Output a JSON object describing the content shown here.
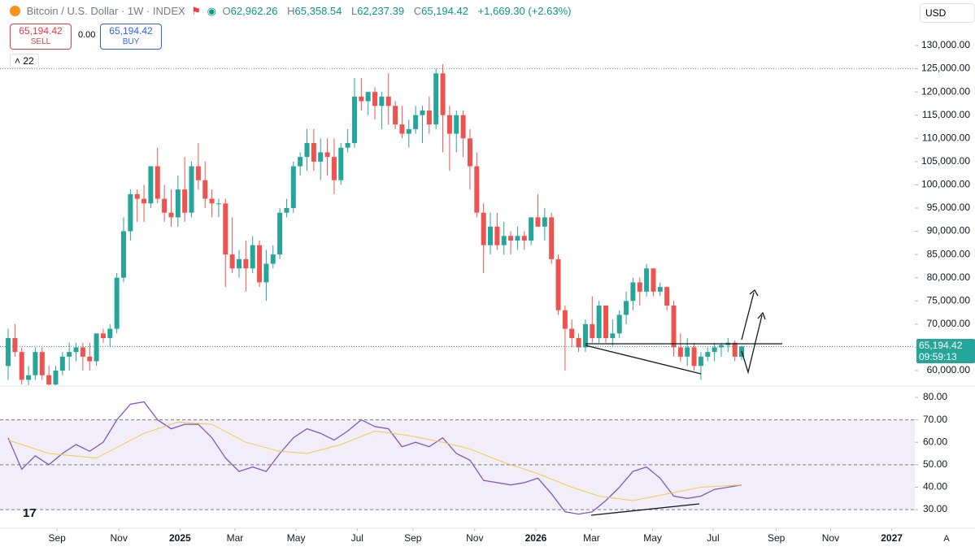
{
  "header": {
    "symbol": "Bitcoin / U.S. Dollar · 1W · INDEX",
    "ohlc_text": [
      [
        "O",
        "62,962.26"
      ],
      [
        "H",
        "65,358.54"
      ],
      [
        "L",
        "62,237.39"
      ],
      [
        "C",
        "65,194.42"
      ]
    ],
    "change": "+1,669.30 (+2.63%)",
    "sell_price": "65,194.42",
    "sell": "SELL",
    "spread": "0.00",
    "buy_price": "65,194.42",
    "buy": "BUY",
    "indicators": "22",
    "currency": "USD",
    "price_tag": "65,194.42",
    "countdown": "09:59:13",
    "auto": "A"
  },
  "chart_data": [
    {
      "type": "candlestick",
      "up_color": "#26a69a",
      "down_color": "#ef5350",
      "ylim": [
        56850,
        139800
      ],
      "xlim": [
        -1.2,
        133.5
      ],
      "yticks": [
        {
          "value": 60000,
          "label": "60,000.00"
        },
        {
          "value": 65000,
          "label": "65,000.00"
        },
        {
          "value": 70000,
          "label": "70,000.00"
        },
        {
          "value": 75000,
          "label": "75,000.00"
        },
        {
          "value": 80000,
          "label": "80,000.00"
        },
        {
          "value": 85000,
          "label": "85,000.00"
        },
        {
          "value": 90000,
          "label": "90,000.00"
        },
        {
          "value": 95000,
          "label": "95,000.00"
        },
        {
          "value": 100000,
          "label": "100,000.00"
        },
        {
          "value": 105000,
          "label": "105,000.00"
        },
        {
          "value": 110000,
          "label": "110,000.00"
        },
        {
          "value": 115000,
          "label": "115,000.00"
        },
        {
          "value": 120000,
          "label": "120,000.00"
        },
        {
          "value": 125000,
          "label": "125,000.00"
        },
        {
          "value": 130000,
          "label": "130,000.00"
        }
      ],
      "ohlc": [
        [
          61000,
          69000,
          58000,
          67000
        ],
        [
          67000,
          70000,
          63000,
          64000
        ],
        [
          64000,
          65000,
          57000,
          58000
        ],
        [
          58000,
          61000,
          55000,
          59000
        ],
        [
          59000,
          65000,
          58000,
          64000
        ],
        [
          64000,
          65000,
          58000,
          59000
        ],
        [
          59000,
          61000,
          55000,
          57000
        ],
        [
          57000,
          61000,
          56000,
          60000
        ],
        [
          60000,
          64000,
          59000,
          63000
        ],
        [
          63000,
          66000,
          60000,
          64000
        ],
        [
          64000,
          66000,
          62000,
          65000
        ],
        [
          65000,
          66000,
          60000,
          63000
        ],
        [
          63000,
          66000,
          60000,
          62000
        ],
        [
          62000,
          68000,
          61000,
          68000
        ],
        [
          68000,
          69000,
          66000,
          67000
        ],
        [
          67000,
          70000,
          65000,
          69000
        ],
        [
          69000,
          81000,
          68000,
          80000
        ],
        [
          80000,
          93000,
          79000,
          90000
        ],
        [
          90000,
          99000,
          88000,
          98000
        ],
        [
          98000,
          99000,
          92000,
          97000
        ],
        [
          97000,
          100000,
          92000,
          96000
        ],
        [
          96000,
          104000,
          95000,
          104000
        ],
        [
          104000,
          108000,
          96000,
          97000
        ],
        [
          97000,
          100000,
          92000,
          94000
        ],
        [
          94000,
          99000,
          91000,
          93000
        ],
        [
          93000,
          102000,
          91000,
          99000
        ],
        [
          99000,
          106000,
          92000,
          94000
        ],
        [
          94000,
          105000,
          93000,
          104000
        ],
        [
          104000,
          109000,
          99000,
          101000
        ],
        [
          101000,
          105000,
          95000,
          97000
        ],
        [
          97000,
          99000,
          93000,
          96000
        ],
        [
          96000,
          97000,
          93000,
          96000
        ],
        [
          96000,
          97000,
          78000,
          85000
        ],
        [
          85000,
          93000,
          81000,
          82000
        ],
        [
          82000,
          86000,
          80000,
          84000
        ],
        [
          84000,
          88000,
          77000,
          82000
        ],
        [
          82000,
          89000,
          81000,
          87000
        ],
        [
          87000,
          88000,
          78000,
          79000
        ],
        [
          79000,
          86000,
          75000,
          83000
        ],
        [
          83000,
          87000,
          82000,
          85000
        ],
        [
          85000,
          95000,
          84000,
          94000
        ],
        [
          94000,
          97000,
          93000,
          95000
        ],
        [
          95000,
          105000,
          94000,
          104000
        ],
        [
          104000,
          107000,
          102000,
          106000
        ],
        [
          106000,
          112000,
          103000,
          109000
        ],
        [
          109000,
          112000,
          103000,
          105000
        ],
        [
          105000,
          110000,
          101000,
          107000
        ],
        [
          107000,
          110000,
          102000,
          106000
        ],
        [
          106000,
          110000,
          98000,
          101000
        ],
        [
          101000,
          109000,
          100000,
          108000
        ],
        [
          108000,
          112000,
          107000,
          109000
        ],
        [
          109000,
          123000,
          108000,
          119000
        ],
        [
          119000,
          123000,
          116000,
          118000
        ],
        [
          118000,
          120000,
          115000,
          120000
        ],
        [
          120000,
          121000,
          114000,
          117000
        ],
        [
          117000,
          120000,
          112000,
          119000
        ],
        [
          119000,
          124000,
          113000,
          117000
        ],
        [
          117000,
          118000,
          112000,
          113000
        ],
        [
          113000,
          117000,
          110000,
          111000
        ],
        [
          111000,
          114000,
          108000,
          112000
        ],
        [
          112000,
          117000,
          111000,
          115000
        ],
        [
          115000,
          117000,
          109000,
          116000
        ],
        [
          116000,
          119000,
          111000,
          113000
        ],
        [
          113000,
          125000,
          112000,
          124000
        ],
        [
          124000,
          126000,
          107000,
          115000
        ],
        [
          115000,
          117000,
          103000,
          111000
        ],
        [
          111000,
          116000,
          107000,
          115000
        ],
        [
          115000,
          116000,
          106000,
          110000
        ],
        [
          110000,
          112000,
          99000,
          104000
        ],
        [
          104000,
          107000,
          93000,
          94000
        ],
        [
          94000,
          96000,
          81000,
          87000
        ],
        [
          87000,
          94000,
          85000,
          91000
        ],
        [
          91000,
          94000,
          86000,
          87000
        ],
        [
          87000,
          92000,
          85000,
          89000
        ],
        [
          89000,
          90000,
          85000,
          88000
        ],
        [
          88000,
          91000,
          86000,
          89000
        ],
        [
          89000,
          90000,
          86000,
          88000
        ],
        [
          88000,
          93000,
          87000,
          93000
        ],
        [
          93000,
          98000,
          91000,
          91000
        ],
        [
          91000,
          95000,
          88000,
          93000
        ],
        [
          93000,
          94000,
          83000,
          84000
        ],
        [
          84000,
          85000,
          72000,
          73000
        ],
        [
          73000,
          74000,
          60000,
          69000
        ],
        [
          69000,
          71000,
          65000,
          67000
        ],
        [
          67000,
          68000,
          64000,
          65000
        ],
        [
          65000,
          71000,
          64000,
          70000
        ],
        [
          70000,
          76000,
          66000,
          67000
        ],
        [
          67000,
          75000,
          66000,
          74000
        ],
        [
          74000,
          74000,
          66000,
          67000
        ],
        [
          67000,
          71000,
          65000,
          68000
        ],
        [
          68000,
          73000,
          67000,
          72000
        ],
        [
          72000,
          77000,
          70000,
          75000
        ],
        [
          75000,
          80000,
          73000,
          79000
        ],
        [
          79000,
          80000,
          74000,
          77000
        ],
        [
          77000,
          83000,
          76000,
          82000
        ],
        [
          82000,
          82000,
          76000,
          77000
        ],
        [
          77000,
          79000,
          76000,
          78000
        ],
        [
          78000,
          78000,
          73000,
          74000
        ],
        [
          74000,
          75000,
          63000,
          65000
        ],
        [
          65000,
          68000,
          62000,
          63000
        ],
        [
          63000,
          67000,
          61000,
          65000
        ],
        [
          65000,
          66000,
          60000,
          61000
        ],
        [
          61000,
          64000,
          58000,
          63000
        ],
        [
          63000,
          65000,
          62000,
          64000
        ],
        [
          64000,
          66000,
          62000,
          65000
        ],
        [
          65000,
          66000,
          63000,
          65500
        ],
        [
          65500,
          67000,
          64000,
          66000
        ],
        [
          66000,
          66500,
          62000,
          63000
        ],
        [
          62962.26,
          65358.54,
          62237.39,
          65194.42
        ]
      ]
    },
    {
      "type": "line",
      "ylim": [
        21.7,
        84.7
      ],
      "xlim": [
        -1.2,
        133.5
      ],
      "yticks": [
        {
          "value": 30,
          "label": "30.00"
        },
        {
          "value": 40,
          "label": "40.00"
        },
        {
          "value": 50,
          "label": "50.00"
        },
        {
          "value": 60,
          "label": "60.00"
        },
        {
          "value": 70,
          "label": "70.00"
        },
        {
          "value": 80,
          "label": "80.00"
        }
      ],
      "levels": [
        30,
        50,
        70
      ],
      "xticks": [
        {
          "value": 7.2,
          "label": "Sep"
        },
        {
          "value": 16.3,
          "label": "Nov"
        },
        {
          "value": 25.3,
          "label": "2025"
        },
        {
          "value": 33.4,
          "label": "Mar"
        },
        {
          "value": 42.4,
          "label": "May"
        },
        {
          "value": 51.4,
          "label": "Jul"
        },
        {
          "value": 59.6,
          "label": "Sep"
        },
        {
          "value": 68.7,
          "label": "Nov"
        },
        {
          "value": 77.7,
          "label": "2026"
        },
        {
          "value": 85.9,
          "label": "Mar"
        },
        {
          "value": 94.9,
          "label": "May"
        },
        {
          "value": 103.8,
          "label": "Jul"
        },
        {
          "value": 113.1,
          "label": "Sep"
        },
        {
          "value": 121.1,
          "label": "Nov"
        },
        {
          "value": 130.1,
          "label": "2027"
        }
      ],
      "series": [
        {
          "color": "#7e57c2",
          "x": [
            0,
            2,
            4,
            6,
            8,
            10,
            12,
            14,
            16,
            18,
            20,
            22,
            24,
            26,
            28,
            30,
            32,
            34,
            36,
            38,
            40,
            42,
            44,
            46,
            48,
            50,
            52,
            54,
            56,
            58,
            60,
            62,
            64,
            66,
            68,
            70,
            72,
            74,
            76,
            78,
            80,
            82,
            84,
            86,
            88,
            90,
            92,
            94,
            96,
            98,
            100,
            102,
            104,
            106,
            108
          ],
          "values": [
            62,
            48,
            54,
            50,
            55,
            59,
            56,
            60,
            70,
            77,
            78,
            70,
            66,
            68,
            68,
            62,
            53,
            47,
            49,
            47,
            55,
            62,
            66,
            64,
            61,
            65,
            70,
            67,
            66,
            58,
            60,
            58,
            62,
            55,
            52,
            43,
            42,
            41,
            42,
            44,
            37,
            29,
            28,
            29,
            34,
            40,
            47,
            49,
            44,
            36,
            35,
            36,
            39,
            40,
            41
          ]
        },
        {
          "color": "#f2c94c",
          "x": [
            0,
            6,
            13,
            20,
            25,
            30,
            35,
            40,
            44,
            49,
            54,
            59,
            64,
            68,
            73,
            78,
            83,
            87,
            92,
            97,
            102,
            108
          ],
          "values": [
            61,
            55,
            53,
            64,
            69,
            68,
            60,
            56,
            55,
            59,
            65,
            63,
            60,
            57,
            51,
            46,
            40,
            36,
            34,
            37,
            40,
            41
          ]
        }
      ]
    }
  ]
}
